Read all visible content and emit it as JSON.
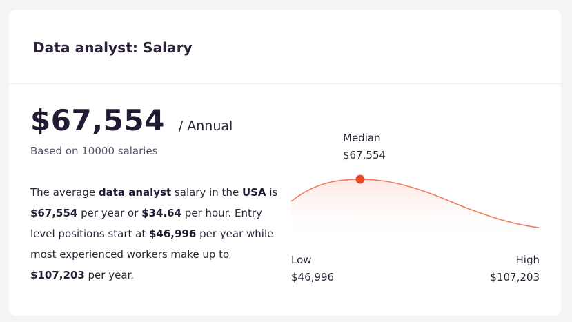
{
  "card": {
    "title": "Data analyst: Salary"
  },
  "salary": {
    "amount": "$67,554",
    "period": "/ Annual",
    "based_on": "Based on 10000 salaries"
  },
  "description": {
    "p1": "The average ",
    "b1": "data analyst",
    "p2": " salary in the ",
    "b2": "USA",
    "p3": " is ",
    "b3": "$67,554",
    "p4": " per year or ",
    "b4": "$34.64",
    "p5": " per hour. Entry level positions start at ",
    "b5": "$46,996",
    "p6": " per year while most experienced workers make up to ",
    "b6": "$107,203",
    "p7": " per year."
  },
  "chart": {
    "median_label": "Median",
    "median_value": "$67,554",
    "low_label": "Low",
    "low_value": "$46,996",
    "high_label": "High",
    "high_value": "$107,203",
    "curve_color": "#f07b5e",
    "dot_color": "#e8492c",
    "fill_color": "#fde5e0"
  }
}
